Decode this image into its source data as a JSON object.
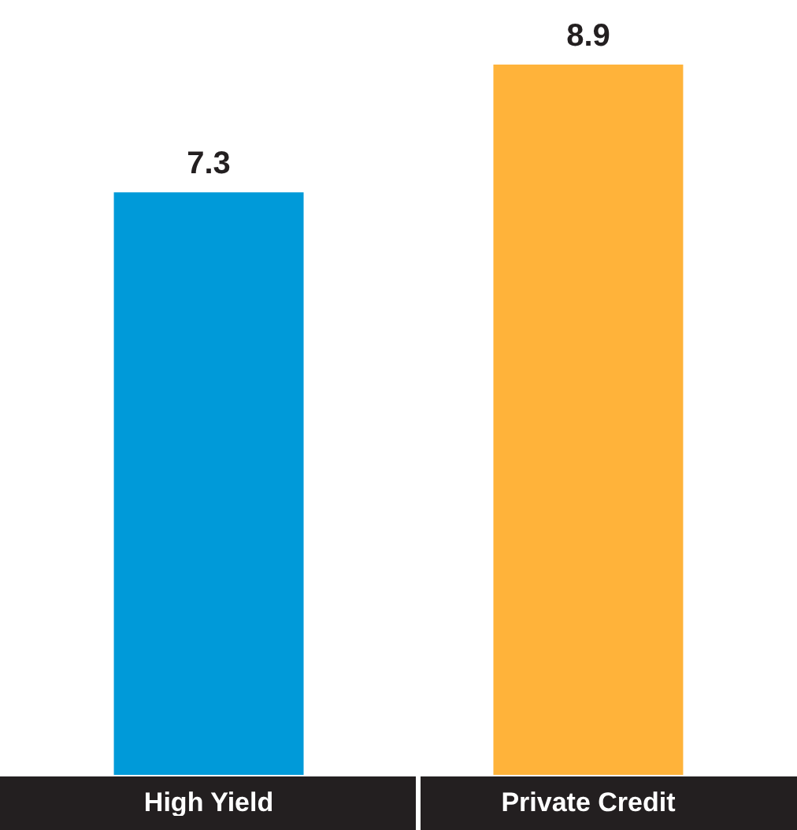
{
  "chart_data": {
    "type": "bar",
    "categories": [
      "High Yield",
      "Private Credit"
    ],
    "values": [
      7.3,
      8.9
    ],
    "colors": [
      "#009ad9",
      "#ffb33a"
    ],
    "data_labels": true
  }
}
